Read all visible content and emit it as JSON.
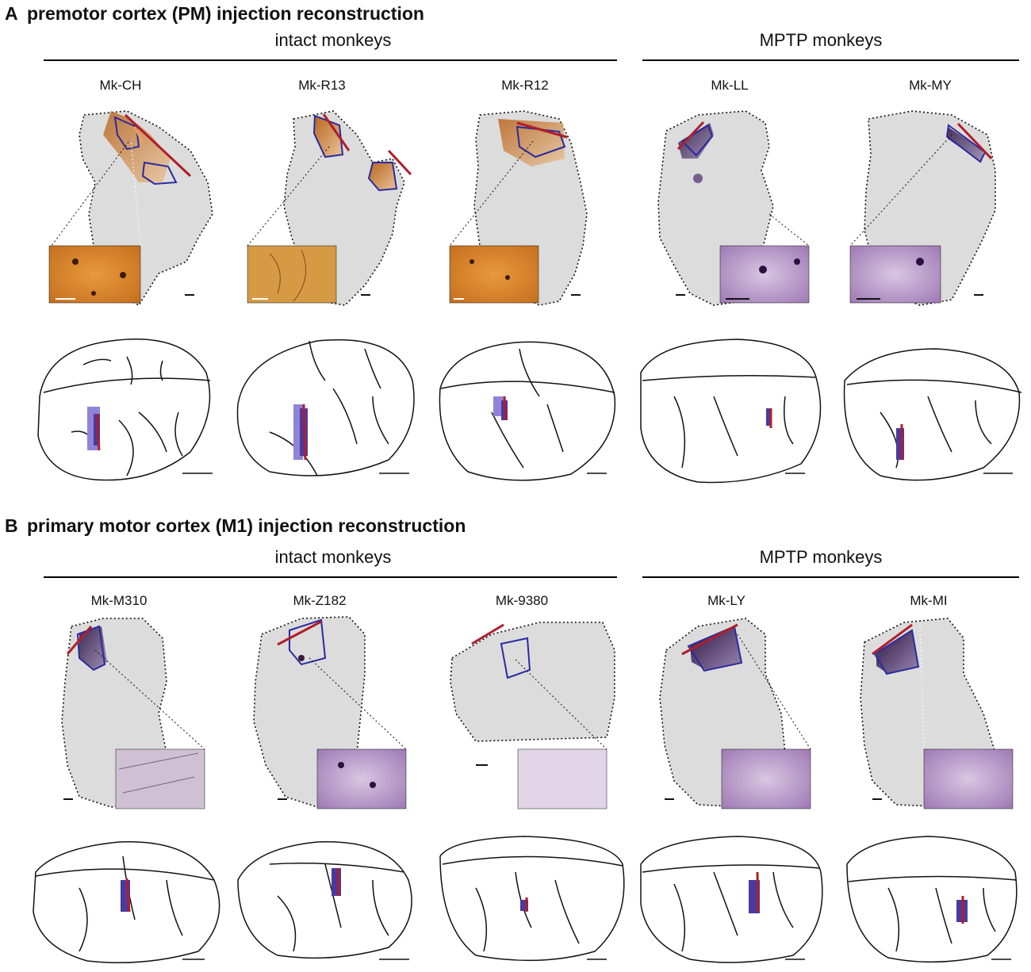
{
  "panels": [
    {
      "letter": "A",
      "title": "premotor cortex (PM) injection reconstruction",
      "groups": [
        {
          "label": "intact monkeys",
          "cases": [
            "Mk-CH",
            "Mk-R13",
            "Mk-R12"
          ]
        },
        {
          "label": "MPTP monkeys",
          "cases": [
            "Mk-LL",
            "Mk-MY"
          ]
        }
      ]
    },
    {
      "letter": "B",
      "title": "primary motor cortex (M1) injection reconstruction",
      "groups": [
        {
          "label": "intact monkeys",
          "cases": [
            "Mk-M310",
            "Mk-Z182",
            "Mk-9380"
          ]
        },
        {
          "label": "MPTP monkeys",
          "cases": [
            "Mk-LY",
            "Mk-MI"
          ]
        }
      ]
    }
  ],
  "colors": {
    "dab_stain": "#c97a2e",
    "dab_inset": "#d9862a",
    "nickel_stain": "#4b2a6e",
    "nickel_inset": "#b592c4",
    "section_gray": "#dcdcdc",
    "outline_blue": "#2a2aa0",
    "track_red": "#b01e2a",
    "core_purple": "#4a3aa0",
    "halo_lavender": "#8f84d8"
  }
}
